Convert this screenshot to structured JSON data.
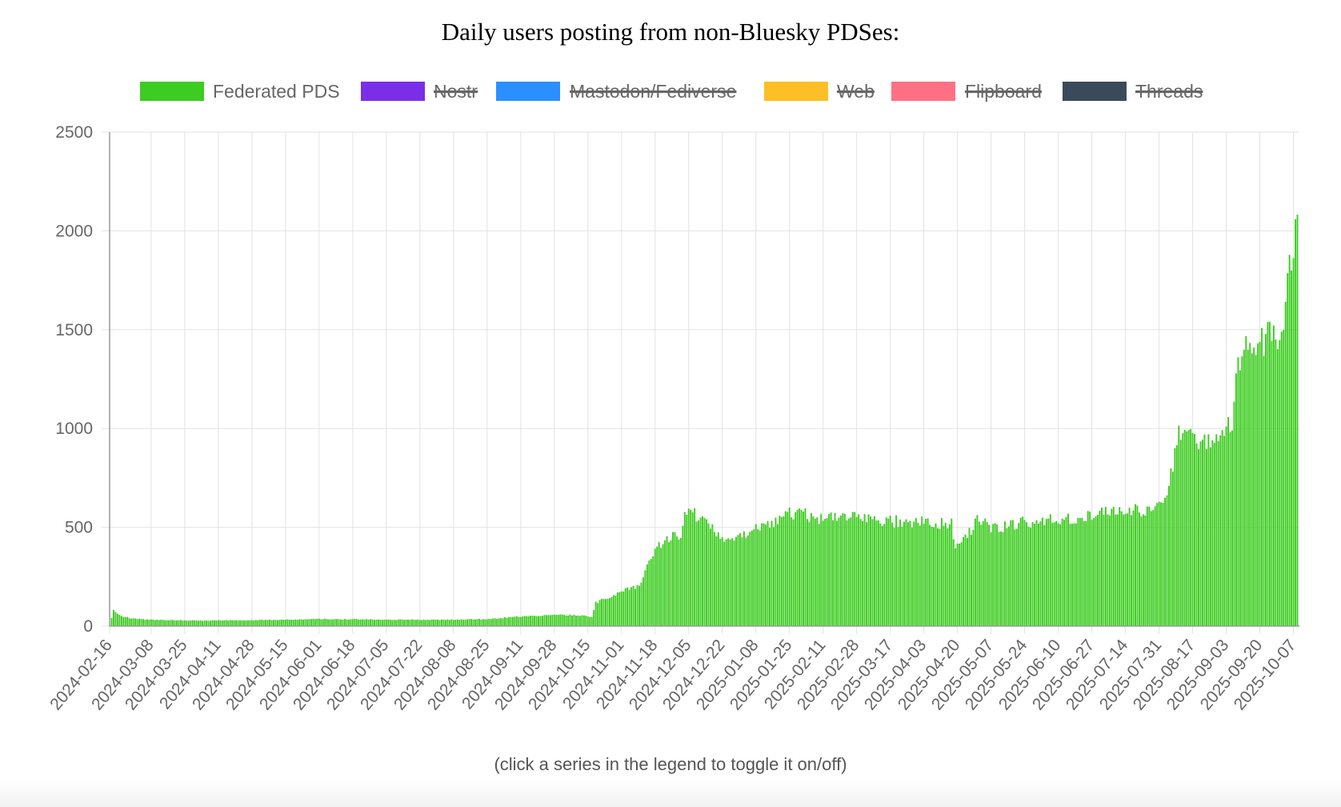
{
  "title": "Daily users posting from non-Bluesky PDSes:",
  "footer_note": "(click a series in the legend to toggle it on/off)",
  "chart_data": {
    "type": "bar",
    "title": "Daily users posting from non-Bluesky PDSes:",
    "xlabel": "",
    "ylabel": "",
    "ylim": [
      0,
      2500
    ],
    "y_ticks": [
      "0",
      "500",
      "1000",
      "1500",
      "2000",
      "2500"
    ],
    "x_range": [
      "2024-02-16",
      "2025-10-10"
    ],
    "x_tick_labels": [
      "2024-02-16",
      "2024-03-08",
      "2024-03-25",
      "2024-04-11",
      "2024-04-28",
      "2024-05-15",
      "2024-06-01",
      "2024-06-18",
      "2024-07-05",
      "2024-07-22",
      "2024-08-08",
      "2024-08-25",
      "2024-09-11",
      "2024-09-28",
      "2024-10-15",
      "2024-11-01",
      "2024-11-18",
      "2024-12-05",
      "2024-12-22",
      "2025-01-08",
      "2025-01-25",
      "2025-02-11",
      "2025-02-28",
      "2025-03-17",
      "2025-04-03",
      "2025-04-20",
      "2025-05-07",
      "2025-05-24",
      "2025-06-10",
      "2025-06-27",
      "2025-07-14",
      "2025-07-31",
      "2025-08-17",
      "2025-09-03",
      "2025-09-20",
      "2025-10-07"
    ],
    "grid": true,
    "legend_position": "top",
    "legend": [
      {
        "name": "Federated PDS",
        "color": "#3dcc21",
        "visible": true
      },
      {
        "name": "Nostr",
        "color": "#7a2ee8",
        "visible": false
      },
      {
        "name": "Mastodon/Fediverse",
        "color": "#2b8fff",
        "visible": false
      },
      {
        "name": "Web",
        "color": "#fcbf25",
        "visible": false
      },
      {
        "name": "Flipboard",
        "color": "#ff7085",
        "visible": false
      },
      {
        "name": "Threads",
        "color": "#3a4a5a",
        "visible": false
      }
    ],
    "series": [
      {
        "name": "Federated PDS",
        "color": "#3dcc21",
        "anchors": [
          [
            "2024-02-16",
            0
          ],
          [
            "2024-02-18",
            80
          ],
          [
            "2024-02-22",
            50
          ],
          [
            "2024-02-28",
            38
          ],
          [
            "2024-03-08",
            32
          ],
          [
            "2024-04-01",
            28
          ],
          [
            "2024-05-01",
            30
          ],
          [
            "2024-06-01",
            36
          ],
          [
            "2024-07-01",
            33
          ],
          [
            "2024-08-01",
            32
          ],
          [
            "2024-08-25",
            35
          ],
          [
            "2024-09-10",
            48
          ],
          [
            "2024-09-28",
            57
          ],
          [
            "2024-10-10",
            55
          ],
          [
            "2024-10-17",
            48
          ],
          [
            "2024-10-19",
            120
          ],
          [
            "2024-10-25",
            140
          ],
          [
            "2024-11-01",
            178
          ],
          [
            "2024-11-10",
            200
          ],
          [
            "2024-11-14",
            310
          ],
          [
            "2024-11-18",
            390
          ],
          [
            "2024-11-25",
            445
          ],
          [
            "2024-12-01",
            470
          ],
          [
            "2024-12-04",
            590
          ],
          [
            "2024-12-08",
            570
          ],
          [
            "2024-12-15",
            505
          ],
          [
            "2024-12-22",
            445
          ],
          [
            "2024-12-30",
            440
          ],
          [
            "2025-01-08",
            500
          ],
          [
            "2025-01-20",
            530
          ],
          [
            "2025-01-25",
            575
          ],
          [
            "2025-02-01",
            565
          ],
          [
            "2025-02-11",
            545
          ],
          [
            "2025-03-01",
            545
          ],
          [
            "2025-03-17",
            530
          ],
          [
            "2025-04-03",
            525
          ],
          [
            "2025-04-17",
            515
          ],
          [
            "2025-04-19",
            400
          ],
          [
            "2025-04-25",
            460
          ],
          [
            "2025-05-01",
            545
          ],
          [
            "2025-05-07",
            495
          ],
          [
            "2025-05-24",
            525
          ],
          [
            "2025-06-10",
            540
          ],
          [
            "2025-06-27",
            560
          ],
          [
            "2025-07-14",
            590
          ],
          [
            "2025-07-25",
            585
          ],
          [
            "2025-07-31",
            600
          ],
          [
            "2025-08-03",
            660
          ],
          [
            "2025-08-07",
            820
          ],
          [
            "2025-08-10",
            990
          ],
          [
            "2025-08-14",
            945
          ],
          [
            "2025-08-24",
            950
          ],
          [
            "2025-09-03",
            990
          ],
          [
            "2025-09-06",
            1040
          ],
          [
            "2025-09-08",
            1320
          ],
          [
            "2025-09-14",
            1400
          ],
          [
            "2025-09-20",
            1450
          ],
          [
            "2025-09-28",
            1470
          ],
          [
            "2025-10-02",
            1540
          ],
          [
            "2025-10-05",
            1820
          ],
          [
            "2025-10-08",
            1950
          ],
          [
            "2025-10-09",
            2030
          ]
        ]
      }
    ]
  }
}
